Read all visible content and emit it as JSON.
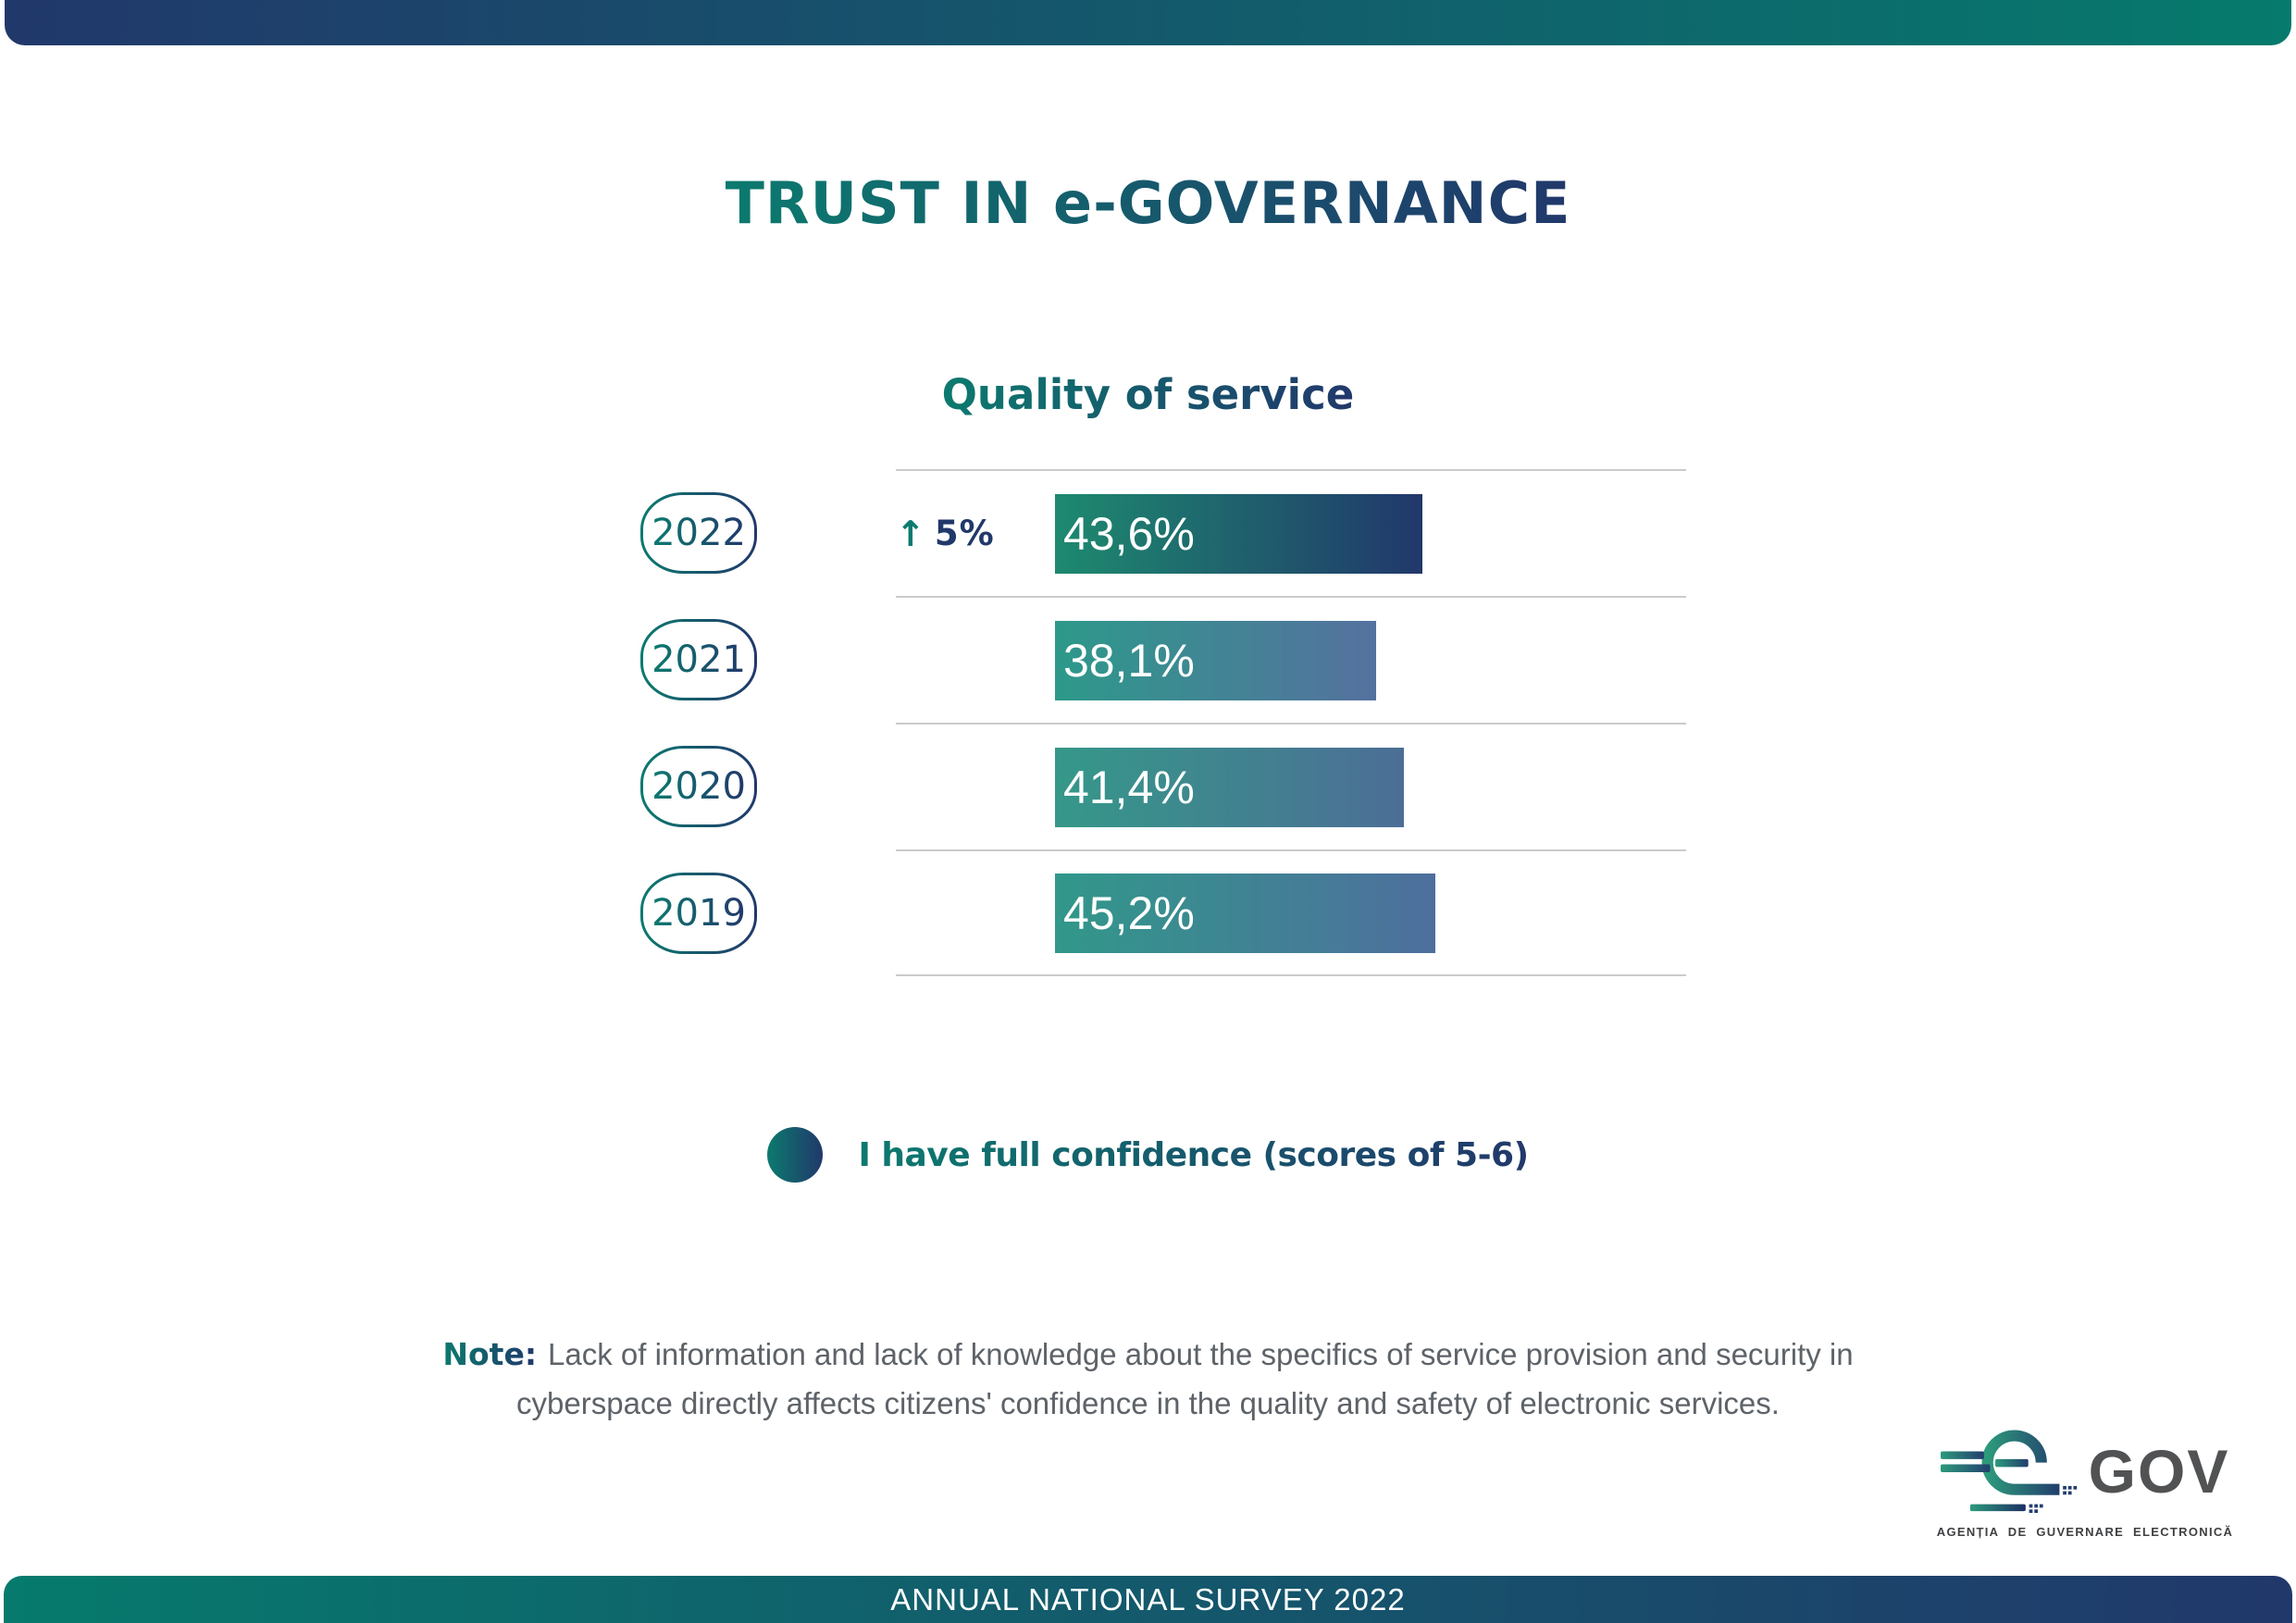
{
  "colors": {
    "navy": "#21386b",
    "teal": "#067a6c",
    "teal_text": "#0c7a6e",
    "gridline": "#cbcbcb",
    "note_gray": "#5d6368",
    "logo_gray": "#515254",
    "tagline_gray": "#3f4042",
    "white": "#ffffff"
  },
  "header": {
    "title": "TRUST IN e-GOVERNANCE"
  },
  "chart": {
    "title": "Quality of service",
    "rows": [
      {
        "year": "2022",
        "label": "43,6%",
        "value": 43.6,
        "delta_arrow": "↑",
        "delta": "5%",
        "bar_from": "#1d8a6f",
        "bar_to": "#21386b"
      },
      {
        "year": "2021",
        "label": "38,1%",
        "value": 38.1,
        "bar_from": "#2d998a",
        "bar_to": "#55719f"
      },
      {
        "year": "2020",
        "label": "41,4%",
        "value": 41.4,
        "bar_from": "#359889",
        "bar_to": "#4c6e96"
      },
      {
        "year": "2019",
        "label": "45,2%",
        "value": 45.2,
        "bar_from": "#31988a",
        "bar_to": "#4e6f9d"
      }
    ]
  },
  "chart_data": {
    "type": "bar",
    "orientation": "horizontal",
    "title": "Quality of service",
    "categories": [
      "2022",
      "2021",
      "2020",
      "2019"
    ],
    "values": [
      43.6,
      38.1,
      41.4,
      45.2
    ],
    "value_labels": [
      "43,6%",
      "38,1%",
      "41,4%",
      "45,2%"
    ],
    "unit": "percent",
    "xlim": [
      0,
      50
    ],
    "grid": "row-separator-lines",
    "annotations": [
      {
        "category": "2022",
        "text": "↑ 5%"
      }
    ],
    "legend": [
      "I have full confidence (scores of 5-6)"
    ],
    "legend_position": "bottom",
    "bar_color_style": "teal-to-blue gradient; 2022 bar darker (teal to dark navy)"
  },
  "legend": {
    "label": "I have full confidence (scores of 5-6)"
  },
  "note": {
    "prefix": "Note:",
    "line1": "Lack of information and lack of knowledge about the specifics of service provision and security in",
    "line2": "cyberspace directly affects citizens' confidence in the quality and safety of electronic services."
  },
  "logo": {
    "name": "GOV",
    "tagline": "AGENȚIA DE GUVERNARE ELECTRONICĂ"
  },
  "footer": {
    "text": "ANNUAL NATIONAL SURVEY 2022"
  }
}
